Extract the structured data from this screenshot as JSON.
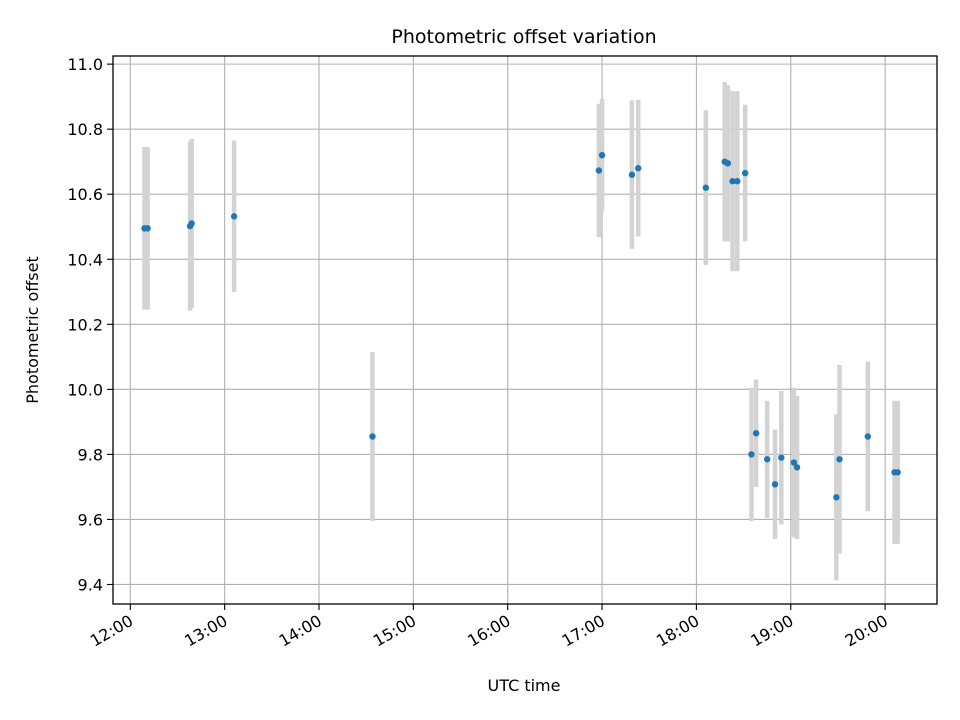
{
  "chart_data": {
    "type": "scatter",
    "title": "Photometric offset variation",
    "xlabel": "UTC time",
    "ylabel": "Photometric offset",
    "x_is_time": true,
    "xlim": [
      "11:49",
      "20:33"
    ],
    "ylim": [
      9.34,
      11.025
    ],
    "x_ticks": [
      "12:00",
      "13:00",
      "14:00",
      "15:00",
      "16:00",
      "17:00",
      "18:00",
      "19:00",
      "20:00"
    ],
    "y_ticks": [
      "9.4",
      "9.6",
      "9.8",
      "10.0",
      "10.2",
      "10.4",
      "10.6",
      "10.8",
      "11.0"
    ],
    "grid": true,
    "errorbar_color": "#d3d3d3",
    "point_color": "#1f77b4",
    "points": [
      {
        "x": "12:09",
        "y": 10.495,
        "err": 0.25
      },
      {
        "x": "12:11",
        "y": 10.495,
        "err": 0.25
      },
      {
        "x": "12:38",
        "y": 10.502,
        "err": 0.26
      },
      {
        "x": "12:39",
        "y": 10.51,
        "err": 0.26
      },
      {
        "x": "13:06",
        "y": 10.532,
        "err": 0.233
      },
      {
        "x": "14:34",
        "y": 9.855,
        "err": 0.26
      },
      {
        "x": "16:58",
        "y": 10.673,
        "err": 0.205
      },
      {
        "x": "17:00",
        "y": 10.72,
        "err": 0.173
      },
      {
        "x": "17:19",
        "y": 10.66,
        "err": 0.228
      },
      {
        "x": "17:23",
        "y": 10.68,
        "err": 0.21
      },
      {
        "x": "18:06",
        "y": 10.62,
        "err": 0.238
      },
      {
        "x": "18:18",
        "y": 10.7,
        "err": 0.245
      },
      {
        "x": "18:20",
        "y": 10.695,
        "err": 0.24
      },
      {
        "x": "18:23",
        "y": 10.64,
        "err": 0.277
      },
      {
        "x": "18:26",
        "y": 10.64,
        "err": 0.277
      },
      {
        "x": "18:31",
        "y": 10.665,
        "err": 0.21
      },
      {
        "x": "18:35",
        "y": 9.8,
        "err": 0.205
      },
      {
        "x": "18:38",
        "y": 9.865,
        "err": 0.165
      },
      {
        "x": "18:45",
        "y": 9.785,
        "err": 0.18
      },
      {
        "x": "18:50",
        "y": 9.708,
        "err": 0.168
      },
      {
        "x": "18:54",
        "y": 9.79,
        "err": 0.205
      },
      {
        "x": "19:02",
        "y": 9.775,
        "err": 0.23
      },
      {
        "x": "19:04",
        "y": 9.76,
        "err": 0.22
      },
      {
        "x": "19:29",
        "y": 9.668,
        "err": 0.255
      },
      {
        "x": "19:31",
        "y": 9.785,
        "err": 0.29
      },
      {
        "x": "19:49",
        "y": 9.855,
        "err": 0.23
      },
      {
        "x": "20:06",
        "y": 9.745,
        "err": 0.22
      },
      {
        "x": "20:08",
        "y": 9.745,
        "err": 0.22
      }
    ]
  }
}
